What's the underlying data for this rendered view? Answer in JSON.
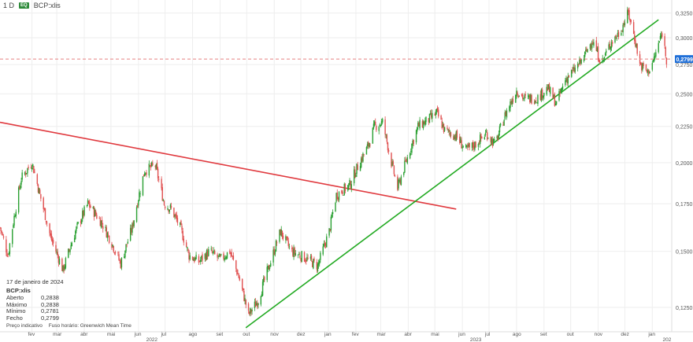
{
  "header": {
    "interval": "1 D",
    "badge": "EQ",
    "symbol": "BCP:xlis"
  },
  "info_panel": {
    "date": "17 de janeiro de 2024",
    "symbol": "BCP:xlis",
    "rows": [
      {
        "label": "Aberto",
        "value": "0,2838"
      },
      {
        "label": "Máximo",
        "value": "0,2838"
      },
      {
        "label": "Mínimo",
        "value": "0,2781"
      },
      {
        "label": "Fecho",
        "value": "0,2799"
      }
    ]
  },
  "footnote": {
    "price_note": "Preço indicativo",
    "timezone": "Fuso horário: Greenwich Mean Time"
  },
  "colors": {
    "up": "#2aa032",
    "down": "#e05050",
    "resistance_line": "#e0393e",
    "support_line": "#22aa22",
    "last_price_line": "#e88080",
    "price_tag": "#1f6fd8",
    "grid": "#eeeeee"
  },
  "chart_data": {
    "type": "candlestick",
    "y_scale": "log",
    "ylim": [
      0.113,
      0.34
    ],
    "yticks": [
      "0,3250",
      "0,3000",
      "0,2750",
      "0,2500",
      "0,2250",
      "0,2000",
      "0,1750",
      "0,1500",
      "0,1250"
    ],
    "ytick_values": [
      0.325,
      0.3,
      0.275,
      0.25,
      0.225,
      0.2,
      0.175,
      0.15,
      0.125
    ],
    "last_price_label": "0,2799",
    "last_price": 0.2799,
    "x_range": [
      "2021-12-27",
      "2024-01-22"
    ],
    "month_ticks": [
      {
        "date": "2022-02-01",
        "label": "fev"
      },
      {
        "date": "2022-03-01",
        "label": "mar"
      },
      {
        "date": "2022-04-01",
        "label": "abr"
      },
      {
        "date": "2022-05-01",
        "label": "mai"
      },
      {
        "date": "2022-06-01",
        "label": "jun"
      },
      {
        "date": "2022-07-01",
        "label": "jul"
      },
      {
        "date": "2022-08-01",
        "label": "ago"
      },
      {
        "date": "2022-09-01",
        "label": "set"
      },
      {
        "date": "2022-10-01",
        "label": "out"
      },
      {
        "date": "2022-11-01",
        "label": "nov"
      },
      {
        "date": "2022-12-01",
        "label": "dez"
      },
      {
        "date": "2023-01-01",
        "label": "jan"
      },
      {
        "date": "2023-02-01",
        "label": "fev"
      },
      {
        "date": "2023-03-01",
        "label": "mar"
      },
      {
        "date": "2023-04-01",
        "label": "abr"
      },
      {
        "date": "2023-05-01",
        "label": "mai"
      },
      {
        "date": "2023-06-01",
        "label": "jun"
      },
      {
        "date": "2023-07-01",
        "label": "jul"
      },
      {
        "date": "2023-08-01",
        "label": "ago"
      },
      {
        "date": "2023-09-01",
        "label": "set"
      },
      {
        "date": "2023-10-01",
        "label": "out"
      },
      {
        "date": "2023-11-01",
        "label": "nov"
      },
      {
        "date": "2023-12-01",
        "label": "dez"
      },
      {
        "date": "2024-01-01",
        "label": "jan"
      }
    ],
    "year_labels": [
      {
        "date": "2022-06-15",
        "label": "2022"
      },
      {
        "date": "2023-06-15",
        "label": "2023"
      },
      {
        "date": "2024-01-18",
        "label": "202"
      }
    ],
    "trendlines": [
      {
        "role": "resistance",
        "start": {
          "date": "2021-12-27",
          "price": 0.228
        },
        "end": {
          "date": "2023-05-25",
          "price": 0.172
        }
      },
      {
        "role": "support",
        "start": {
          "date": "2022-09-30",
          "price": 0.117
        },
        "end": {
          "date": "2024-01-08",
          "price": 0.318
        }
      }
    ],
    "price_path": [
      {
        "date": "2021-12-27",
        "price": 0.162
      },
      {
        "date": "2022-01-05",
        "price": 0.148
      },
      {
        "date": "2022-01-20",
        "price": 0.19
      },
      {
        "date": "2022-02-01",
        "price": 0.2
      },
      {
        "date": "2022-02-10",
        "price": 0.18
      },
      {
        "date": "2022-02-22",
        "price": 0.157
      },
      {
        "date": "2022-03-08",
        "price": 0.141
      },
      {
        "date": "2022-03-22",
        "price": 0.16
      },
      {
        "date": "2022-04-05",
        "price": 0.175
      },
      {
        "date": "2022-04-20",
        "price": 0.165
      },
      {
        "date": "2022-05-01",
        "price": 0.155
      },
      {
        "date": "2022-05-12",
        "price": 0.144
      },
      {
        "date": "2022-05-25",
        "price": 0.162
      },
      {
        "date": "2022-06-08",
        "price": 0.195
      },
      {
        "date": "2022-06-20",
        "price": 0.198
      },
      {
        "date": "2022-06-30",
        "price": 0.175
      },
      {
        "date": "2022-07-08",
        "price": 0.172
      },
      {
        "date": "2022-07-18",
        "price": 0.162
      },
      {
        "date": "2022-07-28",
        "price": 0.148
      },
      {
        "date": "2022-08-08",
        "price": 0.145
      },
      {
        "date": "2022-08-20",
        "price": 0.15
      },
      {
        "date": "2022-09-01",
        "price": 0.146
      },
      {
        "date": "2022-09-12",
        "price": 0.15
      },
      {
        "date": "2022-09-22",
        "price": 0.138
      },
      {
        "date": "2022-10-03",
        "price": 0.122
      },
      {
        "date": "2022-10-14",
        "price": 0.128
      },
      {
        "date": "2022-10-28",
        "price": 0.145
      },
      {
        "date": "2022-11-08",
        "price": 0.16
      },
      {
        "date": "2022-11-20",
        "price": 0.15
      },
      {
        "date": "2022-12-05",
        "price": 0.147
      },
      {
        "date": "2022-12-20",
        "price": 0.143
      },
      {
        "date": "2023-01-02",
        "price": 0.16
      },
      {
        "date": "2023-01-10",
        "price": 0.18
      },
      {
        "date": "2023-01-25",
        "price": 0.186
      },
      {
        "date": "2023-02-05",
        "price": 0.2
      },
      {
        "date": "2023-02-14",
        "price": 0.21
      },
      {
        "date": "2023-02-22",
        "price": 0.225
      },
      {
        "date": "2023-03-03",
        "price": 0.228
      },
      {
        "date": "2023-03-13",
        "price": 0.2
      },
      {
        "date": "2023-03-20",
        "price": 0.184
      },
      {
        "date": "2023-04-01",
        "price": 0.205
      },
      {
        "date": "2023-04-12",
        "price": 0.225
      },
      {
        "date": "2023-04-24",
        "price": 0.23
      },
      {
        "date": "2023-05-03",
        "price": 0.235
      },
      {
        "date": "2023-05-12",
        "price": 0.222
      },
      {
        "date": "2023-05-25",
        "price": 0.218
      },
      {
        "date": "2023-06-05",
        "price": 0.208
      },
      {
        "date": "2023-06-15",
        "price": 0.212
      },
      {
        "date": "2023-06-28",
        "price": 0.22
      },
      {
        "date": "2023-07-08",
        "price": 0.212
      },
      {
        "date": "2023-07-20",
        "price": 0.235
      },
      {
        "date": "2023-08-01",
        "price": 0.253
      },
      {
        "date": "2023-08-10",
        "price": 0.246
      },
      {
        "date": "2023-08-25",
        "price": 0.247
      },
      {
        "date": "2023-09-05",
        "price": 0.255
      },
      {
        "date": "2023-09-15",
        "price": 0.242
      },
      {
        "date": "2023-09-25",
        "price": 0.262
      },
      {
        "date": "2023-10-05",
        "price": 0.27
      },
      {
        "date": "2023-10-15",
        "price": 0.28
      },
      {
        "date": "2023-10-25",
        "price": 0.298
      },
      {
        "date": "2023-11-05",
        "price": 0.276
      },
      {
        "date": "2023-11-15",
        "price": 0.295
      },
      {
        "date": "2023-11-25",
        "price": 0.305
      },
      {
        "date": "2023-12-05",
        "price": 0.325
      },
      {
        "date": "2023-12-12",
        "price": 0.3
      },
      {
        "date": "2023-12-18",
        "price": 0.275
      },
      {
        "date": "2023-12-27",
        "price": 0.268
      },
      {
        "date": "2024-01-03",
        "price": 0.28
      },
      {
        "date": "2024-01-12",
        "price": 0.305
      },
      {
        "date": "2024-01-17",
        "price": 0.2799
      }
    ]
  }
}
